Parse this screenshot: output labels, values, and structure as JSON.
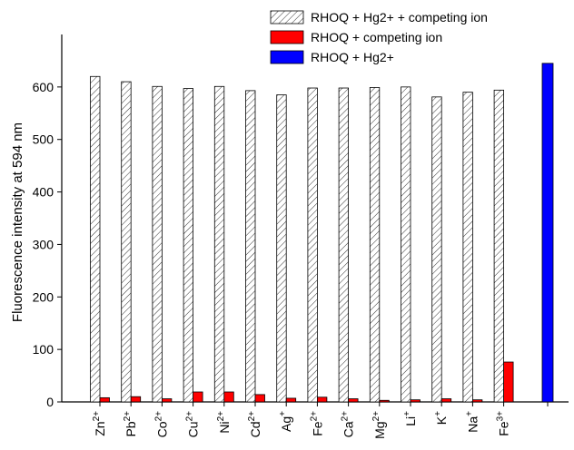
{
  "chart_data": {
    "type": "bar",
    "y_label": "Fluorescence intensity at 594 nm",
    "categories": [
      {
        "ion": "Zn",
        "charge": "2+"
      },
      {
        "ion": "Pb",
        "charge": "2+"
      },
      {
        "ion": "Co",
        "charge": "2+"
      },
      {
        "ion": "Cu",
        "charge": "2+"
      },
      {
        "ion": "Ni",
        "charge": "2+"
      },
      {
        "ion": "Cd",
        "charge": "2+"
      },
      {
        "ion": "Ag",
        "charge": "+"
      },
      {
        "ion": "Fe",
        "charge": "2+"
      },
      {
        "ion": "Ca",
        "charge": "2+"
      },
      {
        "ion": "Mg",
        "charge": "2+"
      },
      {
        "ion": "Li",
        "charge": "+"
      },
      {
        "ion": "K",
        "charge": "+"
      },
      {
        "ion": "Na",
        "charge": "+"
      },
      {
        "ion": "Fe",
        "charge": "3+"
      },
      null
    ],
    "series": [
      {
        "name": "RHOQ + Hg2+ + competing ion",
        "color": "hatch",
        "values": [
          620,
          610,
          601,
          597,
          601,
          593,
          585,
          598,
          598,
          599,
          600,
          581,
          590,
          594,
          null
        ]
      },
      {
        "name": "RHOQ + competing ion",
        "color": "#ff0000",
        "values": [
          8,
          10,
          6,
          19,
          19,
          14,
          7,
          9,
          6,
          3,
          4,
          6,
          4,
          76,
          null
        ]
      },
      {
        "name": "RHOQ + Hg2+",
        "color": "#0000ff",
        "values": [
          null,
          null,
          null,
          null,
          null,
          null,
          null,
          null,
          null,
          null,
          null,
          null,
          null,
          null,
          645
        ]
      }
    ],
    "ylim": [
      0,
      700
    ],
    "yticks": [
      0,
      100,
      200,
      300,
      400,
      500,
      600
    ],
    "grid": false
  }
}
